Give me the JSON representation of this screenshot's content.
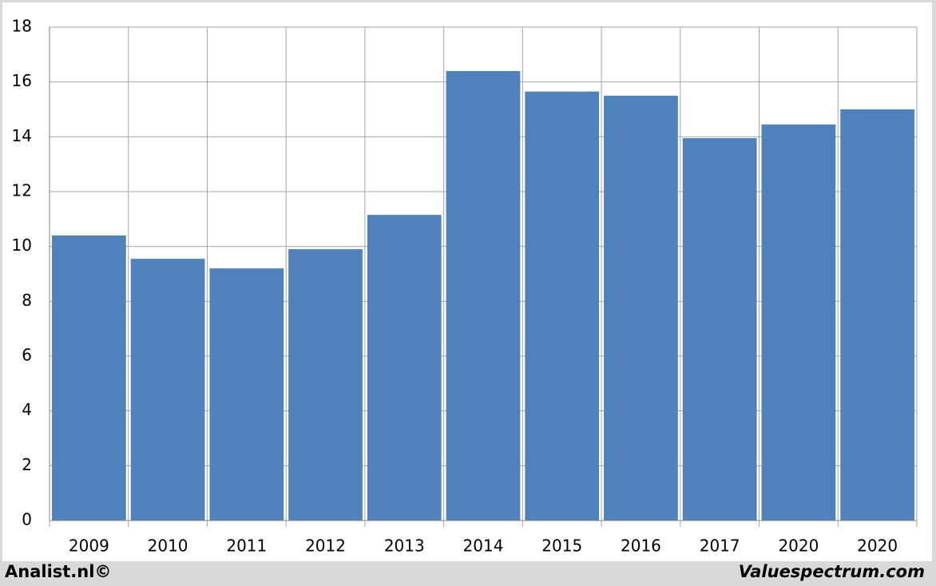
{
  "chart_data": {
    "type": "bar",
    "categories": [
      "2009",
      "2010",
      "2011",
      "2012",
      "2013",
      "2014",
      "2015",
      "2016",
      "2017",
      "2020",
      "2020"
    ],
    "values": [
      10.4,
      9.55,
      9.2,
      9.9,
      11.15,
      16.4,
      15.65,
      15.5,
      13.95,
      14.45,
      15.0
    ],
    "color": "#4f81bd",
    "ylim": [
      0,
      18
    ],
    "yticks": [
      0,
      2,
      4,
      6,
      8,
      10,
      12,
      14,
      16,
      18
    ],
    "grid": true,
    "credits": [
      "Analist.nl©",
      "Valuespectrum.com"
    ]
  }
}
